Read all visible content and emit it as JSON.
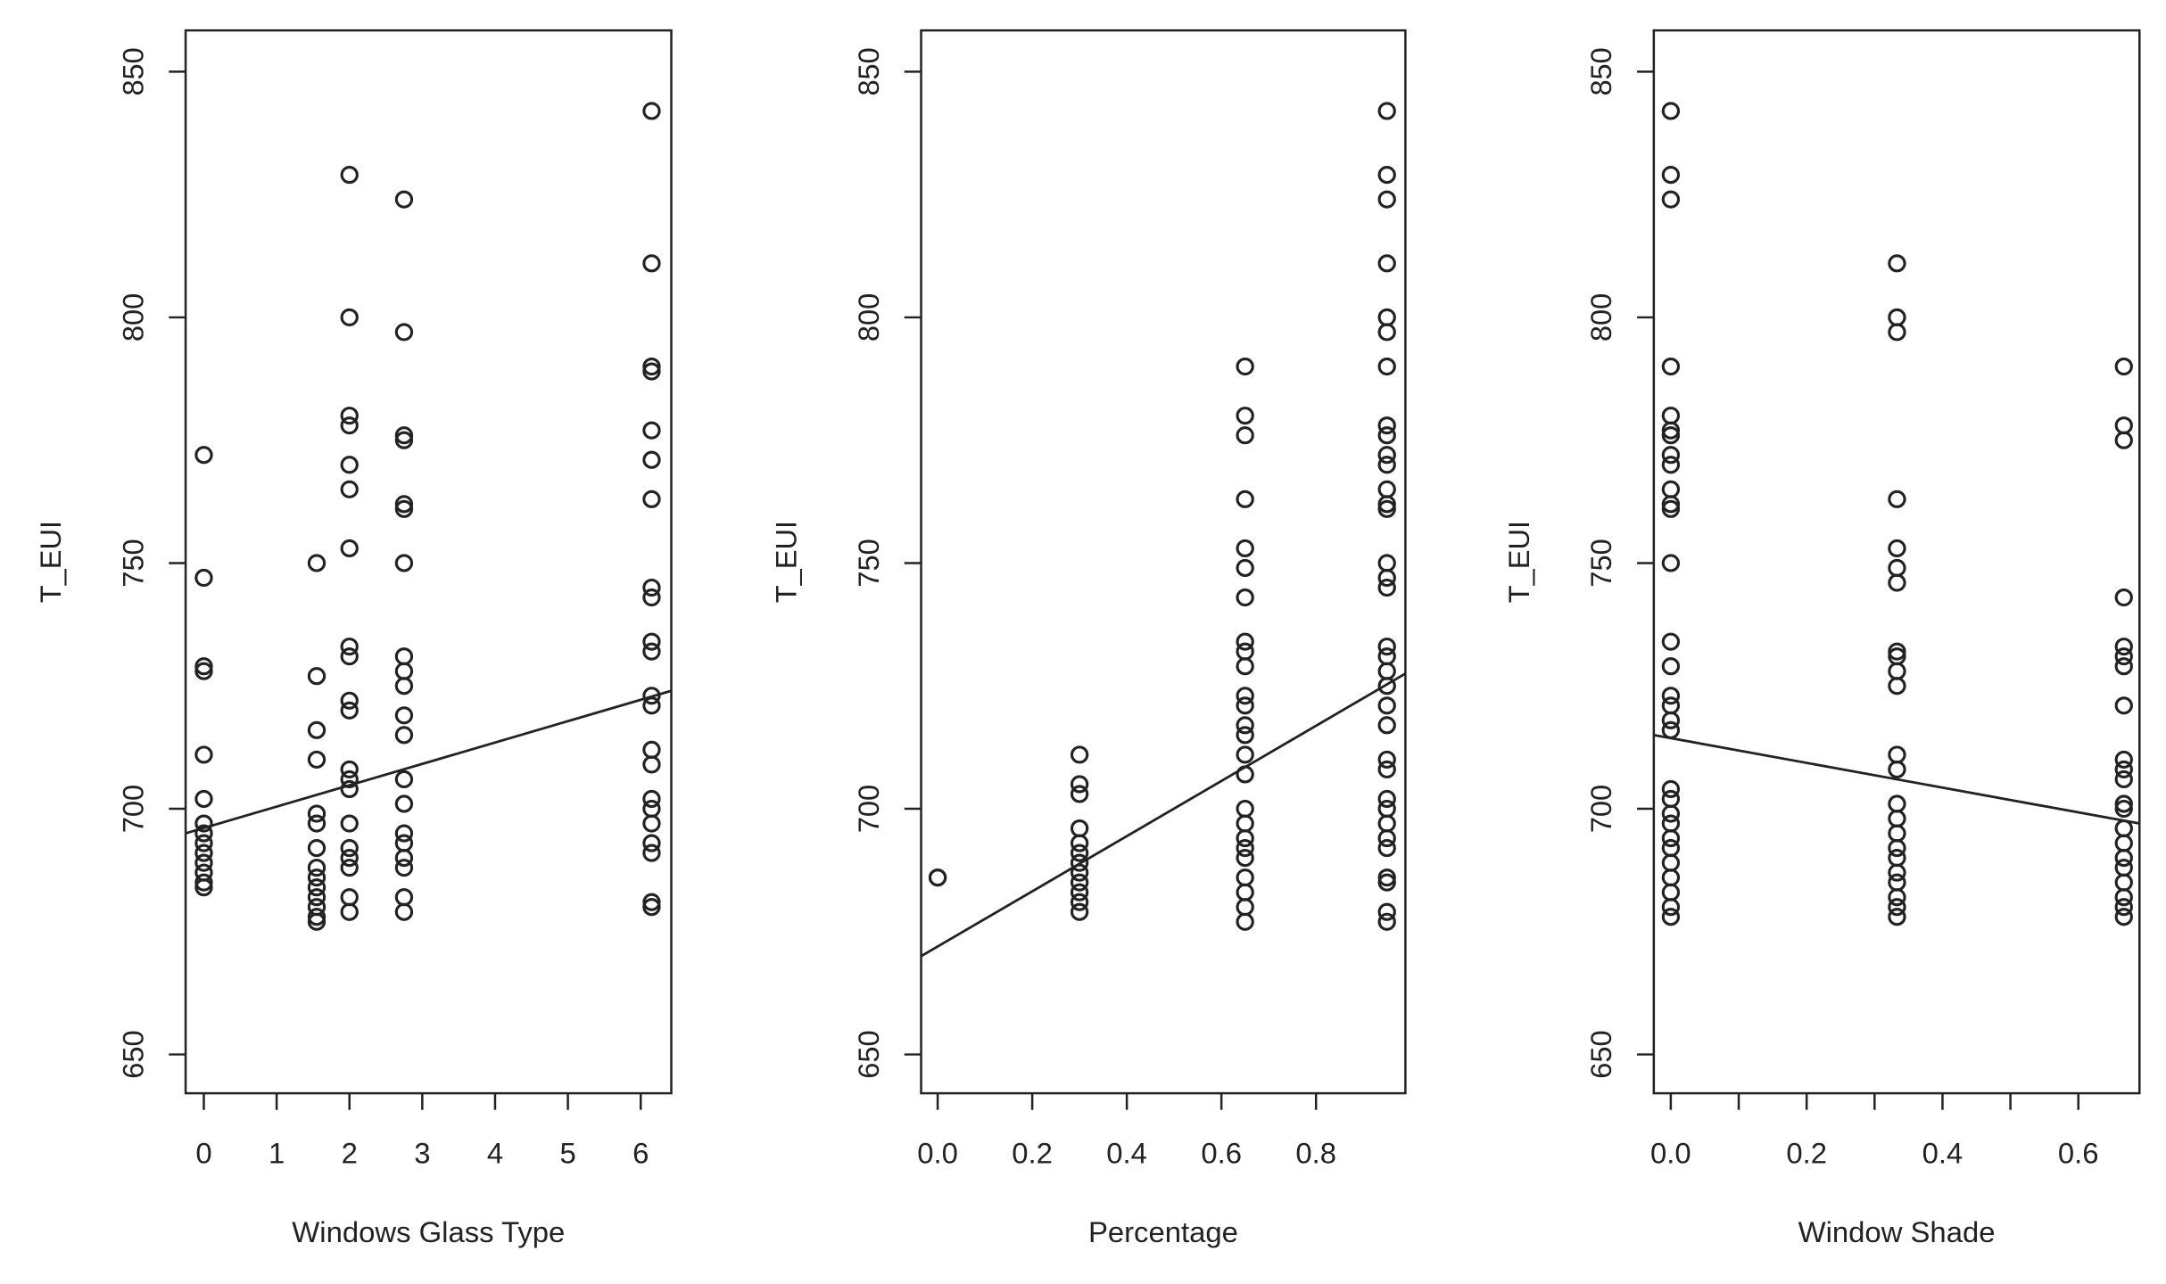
{
  "chart_data": [
    {
      "type": "scatter",
      "xlabel": "Windows Glass Type",
      "ylabel": "T_EUI",
      "xlim": [
        -0.25,
        6.42
      ],
      "ylim": [
        642.1,
        858.4
      ],
      "xticks": [
        0,
        1,
        2,
        3,
        4,
        5,
        6
      ],
      "yticks": [
        650,
        700,
        750,
        800,
        850
      ],
      "x": [
        0,
        0,
        0,
        0,
        0,
        0,
        0,
        0,
        0,
        0,
        0,
        0,
        0,
        0,
        1.55,
        1.55,
        1.55,
        1.55,
        1.55,
        1.55,
        1.55,
        1.55,
        1.55,
        1.55,
        1.55,
        1.55,
        1.55,
        1.55,
        2,
        2,
        2,
        2,
        2,
        2,
        2,
        2,
        2,
        2,
        2,
        2,
        2,
        2,
        2,
        2,
        2,
        2,
        2,
        2,
        2.75,
        2.75,
        2.75,
        2.75,
        2.75,
        2.75,
        2.75,
        2.75,
        2.75,
        2.75,
        2.75,
        2.75,
        2.75,
        2.75,
        2.75,
        2.75,
        2.75,
        2.75,
        2.75,
        2.75,
        6.15,
        6.15,
        6.15,
        6.15,
        6.15,
        6.15,
        6.15,
        6.15,
        6.15,
        6.15,
        6.15,
        6.15,
        6.15,
        6.15,
        6.15,
        6.15,
        6.15,
        6.15,
        6.15,
        6.15,
        6.15,
        6.15
      ],
      "y": [
        772,
        747,
        729,
        728,
        711,
        702,
        697,
        695,
        693,
        691,
        689,
        687,
        685,
        684,
        750,
        727,
        716,
        710,
        699,
        697,
        692,
        688,
        686,
        684,
        682,
        680,
        678,
        677,
        829,
        800,
        780,
        778,
        770,
        765,
        753,
        733,
        731,
        722,
        720,
        708,
        706,
        704,
        697,
        692,
        690,
        688,
        682,
        679,
        824,
        797,
        776,
        775,
        762,
        761,
        750,
        731,
        728,
        725,
        719,
        715,
        706,
        701,
        695,
        693,
        690,
        688,
        682,
        679,
        842,
        811,
        790,
        789,
        777,
        771,
        763,
        745,
        743,
        734,
        732,
        723,
        721,
        712,
        709,
        702,
        700,
        697,
        693,
        691,
        681,
        680
      ],
      "fit": {
        "x": [
          -0.25,
          6.42
        ],
        "y": [
          695,
          724
        ]
      }
    },
    {
      "type": "scatter",
      "xlabel": "Percentage",
      "ylabel": "T_EUI",
      "xlim": [
        -0.035,
        0.989
      ],
      "ylim": [
        642.1,
        858.4
      ],
      "xticks": [
        {
          "value": 0,
          "label": "0.0"
        },
        0.2,
        0.4,
        0.6,
        0.8
      ],
      "yticks": [
        650,
        700,
        750,
        800,
        850
      ],
      "x": [
        0,
        0,
        0.3,
        0.3,
        0.3,
        0.3,
        0.3,
        0.3,
        0.3,
        0.3,
        0.3,
        0.3,
        0.3,
        0.3,
        0.65,
        0.65,
        0.65,
        0.65,
        0.65,
        0.65,
        0.65,
        0.65,
        0.65,
        0.65,
        0.65,
        0.65,
        0.65,
        0.65,
        0.65,
        0.65,
        0.65,
        0.65,
        0.65,
        0.65,
        0.65,
        0.65,
        0.65,
        0.65,
        0.65,
        0.95,
        0.95,
        0.95,
        0.95,
        0.95,
        0.95,
        0.95,
        0.95,
        0.95,
        0.95,
        0.95,
        0.95,
        0.95,
        0.95,
        0.95,
        0.95,
        0.95,
        0.95,
        0.95,
        0.95,
        0.95,
        0.95,
        0.95,
        0.95,
        0.95,
        0.95,
        0.95,
        0.95,
        0.95,
        0.95,
        0.95,
        0.95,
        0.95,
        0.95
      ],
      "y": [
        686,
        686,
        711,
        705,
        703,
        696,
        693,
        691,
        689,
        687,
        685,
        683,
        681,
        679,
        790,
        780,
        776,
        763,
        753,
        749,
        743,
        734,
        732,
        729,
        723,
        721,
        717,
        715,
        711,
        707,
        700,
        697,
        694,
        692,
        690,
        686,
        683,
        680,
        677,
        842,
        829,
        824,
        811,
        800,
        797,
        790,
        778,
        776,
        772,
        770,
        765,
        762,
        761,
        750,
        747,
        745,
        733,
        731,
        728,
        725,
        721,
        717,
        710,
        708,
        702,
        700,
        697,
        694,
        692,
        686,
        685,
        679,
        677
      ],
      "fit": {
        "x": [
          -0.035,
          0.989
        ],
        "y": [
          670,
          727.5
        ]
      }
    },
    {
      "type": "scatter",
      "xlabel": "Window Shade",
      "ylabel": "T_EUI",
      "xlim": [
        -0.025,
        0.69
      ],
      "ylim": [
        642.1,
        858.4
      ],
      "xticks": [
        {
          "value": 0,
          "label": "0.0"
        },
        {
          "value": 0.1,
          "label": null
        },
        0.2,
        {
          "value": 0.3,
          "label": null
        },
        0.4,
        {
          "value": 0.5,
          "label": null
        },
        0.6
      ],
      "yticks": [
        650,
        700,
        750,
        800,
        850
      ],
      "x": [
        0,
        0,
        0,
        0,
        0,
        0,
        0,
        0,
        0,
        0,
        0,
        0,
        0,
        0,
        0,
        0,
        0,
        0,
        0,
        0,
        0,
        0,
        0,
        0,
        0,
        0,
        0,
        0,
        0,
        0,
        0.333,
        0.333,
        0.333,
        0.333,
        0.333,
        0.333,
        0.333,
        0.333,
        0.333,
        0.333,
        0.333,
        0.333,
        0.333,
        0.333,
        0.333,
        0.333,
        0.333,
        0.333,
        0.333,
        0.333,
        0.333,
        0.333,
        0.333,
        0.667,
        0.667,
        0.667,
        0.667,
        0.667,
        0.667,
        0.667,
        0.667,
        0.667,
        0.667,
        0.667,
        0.667,
        0.667,
        0.667,
        0.667,
        0.667,
        0.667,
        0.667,
        0.667,
        0.667,
        0.667
      ],
      "y": [
        842,
        829,
        824,
        790,
        780,
        777,
        776,
        772,
        770,
        765,
        762,
        761,
        750,
        734,
        729,
        723,
        721,
        718,
        716,
        704,
        702,
        699,
        697,
        694,
        692,
        689,
        686,
        683,
        680,
        678,
        811,
        800,
        797,
        763,
        753,
        749,
        746,
        732,
        731,
        728,
        725,
        711,
        708,
        701,
        698,
        695,
        692,
        690,
        687,
        685,
        682,
        680,
        678,
        790,
        778,
        775,
        743,
        733,
        731,
        729,
        721,
        710,
        708,
        706,
        701,
        700,
        696,
        693,
        690,
        688,
        685,
        682,
        680,
        678
      ],
      "fit": {
        "x": [
          -0.025,
          0.69
        ],
        "y": [
          715,
          697
        ]
      }
    }
  ]
}
